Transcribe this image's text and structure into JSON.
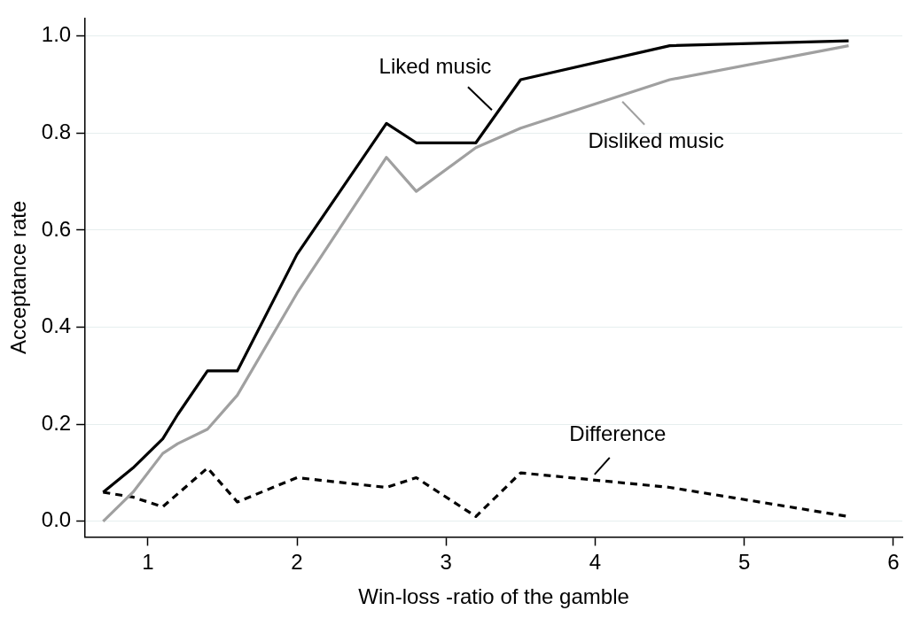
{
  "chart_data": {
    "type": "line",
    "xlabel": "Win-loss -ratio of the gamble",
    "ylabel": "Acceptance rate",
    "xlim": [
      0.58,
      6.06
    ],
    "xticks": [
      1,
      2,
      3,
      4,
      5,
      6
    ],
    "ylim": [
      -0.032,
      1.037
    ],
    "yticks": [
      {
        "value": 0,
        "label": "0.0"
      },
      {
        "value": 0.2,
        "label": "0.2"
      },
      {
        "value": 0.4,
        "label": "0.4"
      },
      {
        "value": 0.6,
        "label": "0.6"
      },
      {
        "value": 0.8,
        "label": "0.8"
      },
      {
        "value": 1,
        "label": "1.0"
      }
    ],
    "grid": "y",
    "marker": "none",
    "series": [
      {
        "name": "Liked music",
        "color": "#000000",
        "line_style": "solid",
        "x": [
          0.7,
          0.9,
          1.1,
          1.2,
          1.4,
          1.6,
          2.0,
          2.6,
          2.8,
          3.2,
          3.5,
          4.5,
          5.7
        ],
        "values": [
          0.06,
          0.11,
          0.17,
          0.22,
          0.31,
          0.31,
          0.55,
          0.82,
          0.78,
          0.78,
          0.91,
          0.98,
          0.99
        ]
      },
      {
        "name": "Disliked music",
        "color": "#a0a0a0",
        "line_style": "solid",
        "x": [
          0.7,
          0.9,
          1.1,
          1.2,
          1.4,
          1.6,
          2.0,
          2.6,
          2.8,
          3.2,
          3.5,
          4.5,
          5.7
        ],
        "values": [
          0.0,
          0.06,
          0.14,
          0.16,
          0.19,
          0.26,
          0.47,
          0.75,
          0.68,
          0.77,
          0.81,
          0.91,
          0.98
        ]
      },
      {
        "name": "Difference",
        "color": "#000000",
        "line_style": "dashed",
        "x": [
          0.7,
          0.9,
          1.1,
          1.4,
          1.6,
          2.0,
          2.6,
          2.8,
          3.2,
          3.5,
          4.5,
          5.7
        ],
        "values": [
          0.06,
          0.05,
          0.03,
          0.11,
          0.04,
          0.09,
          0.07,
          0.09,
          0.01,
          0.1,
          0.07,
          0.01
        ]
      }
    ]
  }
}
